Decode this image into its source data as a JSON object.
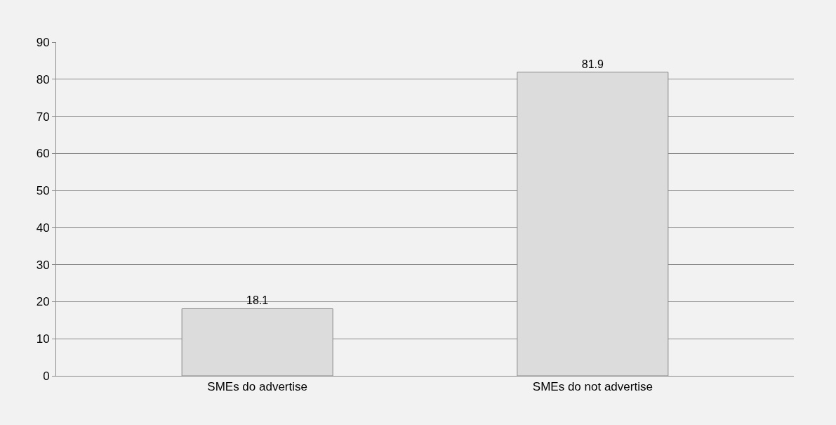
{
  "chart_data": {
    "type": "bar",
    "categories": [
      "SMEs do advertise",
      "SMEs do not advertise"
    ],
    "values": [
      18.1,
      81.9
    ],
    "color": "#dcdcdc",
    "ylim": [
      0,
      90
    ],
    "yticks": [
      0,
      10,
      20,
      30,
      40,
      50,
      60,
      70,
      80,
      90
    ],
    "grid": "y",
    "data_labels": true
  }
}
